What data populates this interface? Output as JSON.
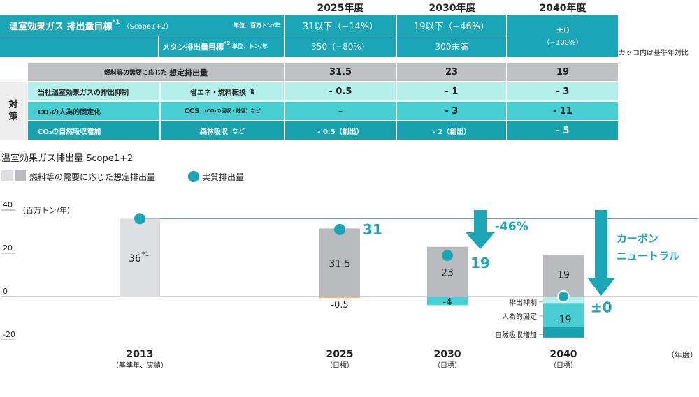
{
  "target_table": {
    "years": [
      "2025年度",
      "2030年度",
      "2040年度"
    ],
    "title_main": "温室効果ガス 排出量目標",
    "title_note": "*1",
    "title_scope": "（Scope1+2）",
    "unit_main": "単位：百万トン/年",
    "row_ghg": [
      "31以下（−14%）",
      "19以下（−46%）"
    ],
    "methane_label": "メタン排出量目標",
    "methane_note": "*2",
    "unit_methane": "単位：トン/年",
    "row_methane": [
      "350（−80%）",
      "300未満"
    ],
    "col2040_line1": "±0",
    "col2040_line2": "（−100%）",
    "paren_note": "カッコ内は基準年対比"
  },
  "measures_table": {
    "side_label_1": "対",
    "side_label_2": "策",
    "header_label_small": "燃料等の需要に応じた",
    "header_label_big": "想定排出量",
    "header_values": [
      "31.5",
      "23",
      "19"
    ],
    "rows": [
      {
        "category": "当社温室効果ガスの排出抑制",
        "method": "省エネ・燃料転換",
        "method_small": "他",
        "values": [
          "- 0.5",
          "- 1",
          "- 3"
        ]
      },
      {
        "category": "CO₂の人為的固定化",
        "method": "CCS",
        "method_small": "（CO₂の回収・貯留）など",
        "values": [
          "–",
          "- 3",
          "- 11"
        ]
      },
      {
        "category": "CO₂の自然吸収増加",
        "method": "森林吸収",
        "method_small": "など",
        "values": [
          "- 0.5（創出）",
          "- 2（創出）",
          "- 5"
        ]
      }
    ]
  },
  "chart_title": "温室効果ガス排出量 Scope1+2",
  "legend": {
    "bars": "燃料等の需要に応じた想定排出量",
    "dot": "実質排出量"
  },
  "colors": {
    "teal": "#1aa6b7",
    "bar_2013": "#dcdee0",
    "bar_target": "#b9bbbe",
    "suppress": "#b3f0ec",
    "fix": "#47cfd3",
    "absorb": "#17a2ae"
  },
  "chart_data": {
    "type": "bar",
    "title": "温室効果ガス排出量 Scope1+2",
    "y_unit_label": "（百万トン/年）",
    "x_unit_label": "（年度）",
    "ylim": [
      -20,
      40
    ],
    "yticks": [
      -20,
      0,
      20,
      40
    ],
    "categories": [
      "2013",
      "2025",
      "2030",
      "2040"
    ],
    "category_sublabels": [
      "（基準年、実績）",
      "（目標）",
      "（目標）",
      "（目標）"
    ],
    "assumed_emissions": [
      36,
      31.5,
      23,
      19
    ],
    "assumed_labels": [
      "36*1",
      "31.5",
      "23",
      "19"
    ],
    "reductions": [
      {
        "year": "2025",
        "values": [
          -0.5
        ],
        "labels": [
          "-0.5"
        ]
      },
      {
        "year": "2030",
        "values": [
          -4
        ],
        "labels": [
          "-4"
        ]
      },
      {
        "year": "2040",
        "values": [
          -3,
          -11,
          -5
        ],
        "labels": [
          "",
          "-19",
          ""
        ]
      }
    ],
    "net_emissions": [
      36,
      31,
      19,
      0
    ],
    "net_labels": [
      "",
      "31",
      "19",
      "±0"
    ],
    "breakdown_labels": [
      "排出抑制",
      "人為的固定",
      "自然吸収増加"
    ],
    "annotations": {
      "pct": "-46%",
      "neutral_line1": "カーボン",
      "neutral_line2": "ニュートラル"
    }
  }
}
